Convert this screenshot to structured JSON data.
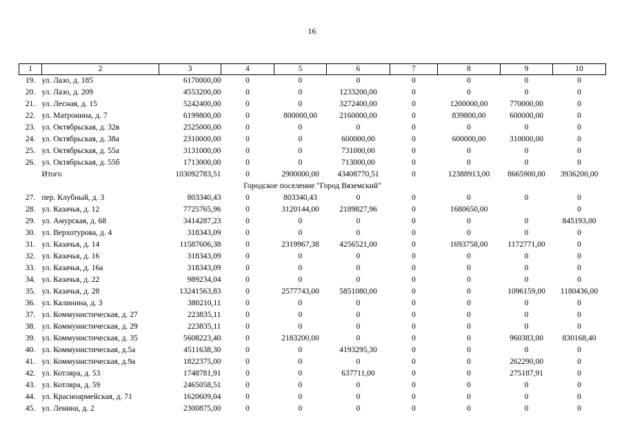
{
  "page_number": "16",
  "headers": [
    "1",
    "2",
    "3",
    "4",
    "5",
    "6",
    "7",
    "8",
    "9",
    "10"
  ],
  "rows": [
    {
      "type": "data",
      "cells": [
        "19.",
        "ул. Лазо, д. 185",
        "6170000,00",
        "0",
        "0",
        "0",
        "0",
        "0",
        "0",
        "0"
      ]
    },
    {
      "type": "data",
      "cells": [
        "20.",
        "ул. Лазо, д. 209",
        "4553200,00",
        "0",
        "0",
        "1233200,00",
        "0",
        "0",
        "0",
        "0"
      ]
    },
    {
      "type": "data",
      "cells": [
        "21.",
        "ул. Лесная, д. 15",
        "5242400,00",
        "0",
        "0",
        "3272400,00",
        "0",
        "1200000,00",
        "770000,00",
        "0"
      ]
    },
    {
      "type": "data",
      "cells": [
        "22.",
        "ул. Матронина, д. 7",
        "6199800,00",
        "0",
        "800000,00",
        "2160000,00",
        "0",
        "839800,00",
        "600000,00",
        "0"
      ]
    },
    {
      "type": "data",
      "cells": [
        "23.",
        "ул. Октябрьская, д. 32в",
        "2525000,00",
        "0",
        "0",
        "0",
        "0",
        "0",
        "0",
        "0"
      ]
    },
    {
      "type": "data",
      "cells": [
        "24.",
        "ул. Октябрьская, д. 38а",
        "2310000,00",
        "0",
        "0",
        "600000,00",
        "0",
        "600000,00",
        "310000,00",
        "0"
      ]
    },
    {
      "type": "data",
      "cells": [
        "25.",
        "ул. Октябрьская, д. 55а",
        "3131000,00",
        "0",
        "0",
        "731000,00",
        "0",
        "0",
        "0",
        "0"
      ]
    },
    {
      "type": "data",
      "cells": [
        "26.",
        "ул. Октябрьская, д. 55б",
        "1713000,00",
        "0",
        "0",
        "713000,00",
        "0",
        "0",
        "0",
        "0"
      ]
    },
    {
      "type": "data",
      "cells": [
        "",
        "Итого",
        "103092783,51",
        "0",
        "2900000,00",
        "43408770,51",
        "0",
        "12388913,00",
        "8665900,00",
        "3936200,00"
      ]
    },
    {
      "type": "section",
      "text": "Городское поселение \"Город Вяземский\""
    },
    {
      "type": "data",
      "cells": [
        "27.",
        "пер. Клубный, д. 3",
        "803340,43",
        "0",
        "803340,43",
        "0",
        "0",
        "0",
        "0",
        "0"
      ]
    },
    {
      "type": "data",
      "cells": [
        "28.",
        "ул. Казачья, д. 12",
        "7725765,96",
        "0",
        "3120144,00",
        "2189827,96",
        "0",
        "1680650,00",
        "",
        "0"
      ]
    },
    {
      "type": "data",
      "cells": [
        "29.",
        "ул. Амурская, д. 68",
        "3414287,23",
        "0",
        "0",
        "0",
        "0",
        "0",
        "0",
        "845193,00"
      ]
    },
    {
      "type": "data",
      "cells": [
        "30.",
        "ул. Верхотурова, д. 4",
        "318343,09",
        "0",
        "0",
        "0",
        "0",
        "0",
        "0",
        "0"
      ]
    },
    {
      "type": "data",
      "cells": [
        "31.",
        "ул. Казачья, д. 14",
        "11587606,38",
        "0",
        "2319967,38",
        "4256521,00",
        "0",
        "1693758,00",
        "1172771,00",
        "0"
      ]
    },
    {
      "type": "data",
      "cells": [
        "32.",
        "ул. Казачья, д. 16",
        "318343,09",
        "0",
        "0",
        "0",
        "0",
        "0",
        "0",
        "0"
      ]
    },
    {
      "type": "data",
      "cells": [
        "33.",
        "ул. Казачья, д. 16а",
        "318343,09",
        "0",
        "0",
        "0",
        "0",
        "0",
        "0",
        "0"
      ]
    },
    {
      "type": "data",
      "cells": [
        "34.",
        "ул. Казачья, д. 22",
        "989234,04",
        "0",
        "0",
        "0",
        "0",
        "0",
        "0",
        "0"
      ]
    },
    {
      "type": "data",
      "cells": [
        "35.",
        "ул. Казачья, д. 28",
        "13241563,83",
        "0",
        "2577743,00",
        "5851080,00",
        "0",
        "0",
        "1096159,00",
        "1180436,00"
      ]
    },
    {
      "type": "data",
      "cells": [
        "36.",
        "ул. Калинина, д. 3",
        "380210,11",
        "0",
        "0",
        "0",
        "0",
        "0",
        "0",
        "0"
      ]
    },
    {
      "type": "data",
      "cells": [
        "37.",
        "ул. Коммунистическая, д. 27",
        "223835,11",
        "0",
        "0",
        "0",
        "0",
        "0",
        "0",
        "0"
      ]
    },
    {
      "type": "data",
      "cells": [
        "38.",
        "ул. Коммунистическая, д. 29",
        "223835,11",
        "0",
        "0",
        "0",
        "0",
        "0",
        "0",
        "0"
      ]
    },
    {
      "type": "data",
      "cells": [
        "39.",
        "ул. Коммунистическая, д. 35",
        "5608223,40",
        "0",
        "2183200,00",
        "0",
        "0",
        "0",
        "960383,00",
        "830168,40"
      ]
    },
    {
      "type": "data",
      "cells": [
        "40.",
        "ул. Коммунистическая, д.5а",
        "4511638,30",
        "0",
        "0",
        "4193295,30",
        "0",
        "0",
        "0",
        "0"
      ]
    },
    {
      "type": "data",
      "cells": [
        "41.",
        "ул. Коммунистическая, д.9а",
        "1822375,00",
        "0",
        "0",
        "0",
        "0",
        "0",
        "262290,00",
        "0"
      ]
    },
    {
      "type": "data",
      "cells": [
        "42.",
        "ул. Котляра, д. 53",
        "1748781,91",
        "0",
        "0",
        "637711,00",
        "0",
        "0",
        "275187,91",
        "0"
      ]
    },
    {
      "type": "data",
      "cells": [
        "43.",
        "ул. Котляра, д. 59",
        "2465058,51",
        "0",
        "0",
        "0",
        "0",
        "0",
        "0",
        "0"
      ]
    },
    {
      "type": "data",
      "cells": [
        "44.",
        "ул. Красноармейская, д. 71",
        "1620609,04",
        "0",
        "0",
        "0",
        "0",
        "0",
        "0",
        "0"
      ]
    },
    {
      "type": "data",
      "cells": [
        "45.",
        "ул. Ленина, д. 2",
        "2300875,00",
        "0",
        "0",
        "0",
        "0",
        "0",
        "0",
        "0"
      ]
    }
  ]
}
